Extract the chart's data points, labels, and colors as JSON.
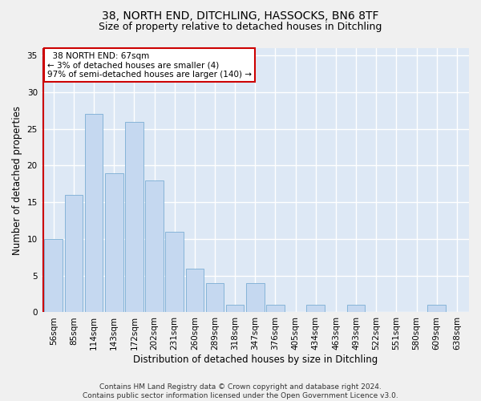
{
  "title1": "38, NORTH END, DITCHLING, HASSOCKS, BN6 8TF",
  "title2": "Size of property relative to detached houses in Ditchling",
  "xlabel": "Distribution of detached houses by size in Ditchling",
  "ylabel": "Number of detached properties",
  "footnote": "Contains HM Land Registry data © Crown copyright and database right 2024.\nContains public sector information licensed under the Open Government Licence v3.0.",
  "categories": [
    "56sqm",
    "85sqm",
    "114sqm",
    "143sqm",
    "172sqm",
    "202sqm",
    "231sqm",
    "260sqm",
    "289sqm",
    "318sqm",
    "347sqm",
    "376sqm",
    "405sqm",
    "434sqm",
    "463sqm",
    "493sqm",
    "522sqm",
    "551sqm",
    "580sqm",
    "609sqm",
    "638sqm"
  ],
  "values": [
    10,
    16,
    27,
    19,
    26,
    18,
    11,
    6,
    4,
    1,
    4,
    1,
    0,
    1,
    0,
    1,
    0,
    0,
    0,
    1,
    0
  ],
  "bar_color": "#c5d8f0",
  "bar_edge_color": "#7aadd4",
  "annotation_text": "  38 NORTH END: 67sqm\n← 3% of detached houses are smaller (4)\n97% of semi-detached houses are larger (140) →",
  "annotation_box_color": "#ffffff",
  "annotation_box_edge": "#cc0000",
  "ylim": [
    0,
    36
  ],
  "yticks": [
    0,
    5,
    10,
    15,
    20,
    25,
    30,
    35
  ],
  "bg_color": "#dde8f5",
  "grid_color": "#ffffff",
  "red_line_color": "#cc0000",
  "title1_fontsize": 10,
  "title2_fontsize": 9,
  "tick_fontsize": 7.5,
  "ylabel_fontsize": 8.5,
  "xlabel_fontsize": 8.5,
  "footnote_fontsize": 6.5
}
